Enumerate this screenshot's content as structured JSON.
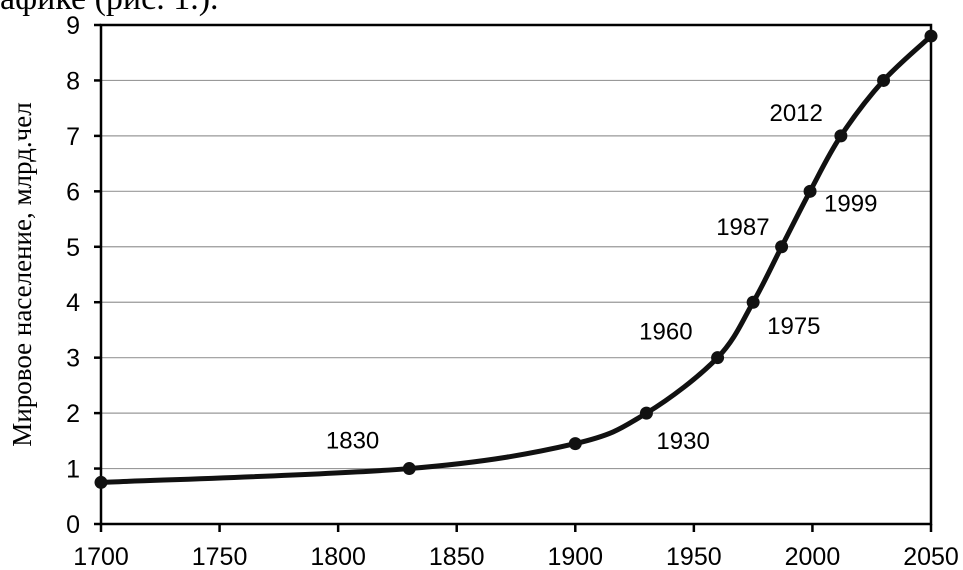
{
  "top_text": "афике (рис. 1.).",
  "chart_data": {
    "type": "line",
    "title": "",
    "xlabel": "",
    "ylabel": "Мировое население, млрд.чел",
    "xlim": [
      1700,
      2050
    ],
    "ylim": [
      0,
      9
    ],
    "x_ticks": [
      1700,
      1750,
      1800,
      1850,
      1900,
      1950,
      2000,
      2050
    ],
    "y_ticks": [
      0,
      1,
      2,
      3,
      4,
      5,
      6,
      7,
      8,
      9
    ],
    "grid": "horizontal",
    "points": [
      {
        "x": 1700,
        "y": 0.75
      },
      {
        "x": 1830,
        "y": 1.0,
        "label": "1830"
      },
      {
        "x": 1900,
        "y": 1.45
      },
      {
        "x": 1930,
        "y": 2.0,
        "label": "1930"
      },
      {
        "x": 1960,
        "y": 3.0,
        "label": "1960"
      },
      {
        "x": 1975,
        "y": 4.0,
        "label": "1975"
      },
      {
        "x": 1987,
        "y": 5.0,
        "label": "1987"
      },
      {
        "x": 1999,
        "y": 6.0,
        "label": "1999"
      },
      {
        "x": 2012,
        "y": 7.0,
        "label": "2012"
      },
      {
        "x": 2030,
        "y": 8.0
      },
      {
        "x": 2050,
        "y": 8.8
      }
    ]
  }
}
